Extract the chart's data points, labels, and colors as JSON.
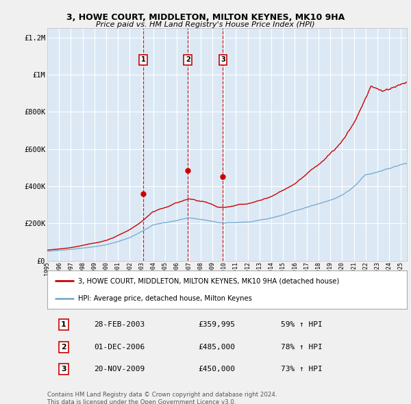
{
  "title": "3, HOWE COURT, MIDDLETON, MILTON KEYNES, MK10 9HA",
  "subtitle": "Price paid vs. HM Land Registry's House Price Index (HPI)",
  "fig_bg_color": "#f0f0f0",
  "plot_bg_color": "#dce9f5",
  "grid_color": "#ffffff",
  "red_line_color": "#cc0000",
  "blue_line_color": "#7aadd4",
  "purchases": [
    {
      "label": "1",
      "date_num": 2003.15,
      "price": 359995,
      "hpi_pct": "59%",
      "date_str": "28-FEB-2003"
    },
    {
      "label": "2",
      "date_num": 2006.92,
      "price": 485000,
      "hpi_pct": "78%",
      "date_str": "01-DEC-2006"
    },
    {
      "label": "3",
      "date_num": 2009.9,
      "price": 450000,
      "hpi_pct": "73%",
      "date_str": "20-NOV-2009"
    }
  ],
  "legend_red": "3, HOWE COURT, MIDDLETON, MILTON KEYNES, MK10 9HA (detached house)",
  "legend_blue": "HPI: Average price, detached house, Milton Keynes",
  "footer": "Contains HM Land Registry data © Crown copyright and database right 2024.\nThis data is licensed under the Open Government Licence v3.0.",
  "ylim": [
    0,
    1250000
  ],
  "yticks": [
    0,
    200000,
    400000,
    600000,
    800000,
    1000000,
    1200000
  ],
  "ytick_labels": [
    "£0",
    "£200K",
    "£400K",
    "£600K",
    "£800K",
    "£1M",
    "£1.2M"
  ],
  "xmin": 1995,
  "xmax": 2025.5
}
